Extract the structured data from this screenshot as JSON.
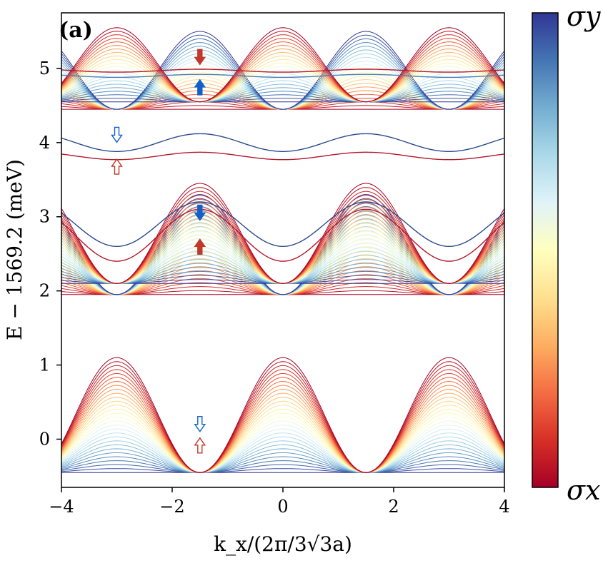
{
  "chart_data": {
    "type": "line",
    "panel_label": "(a)",
    "xlabel": "k_x/(2π/3√3a)",
    "ylabel": "E − 1569.2 (meV)",
    "xlim": [
      -4,
      4
    ],
    "ylim": [
      -0.65,
      5.75
    ],
    "x_ticks": [
      -4,
      -2,
      0,
      2,
      4
    ],
    "x_tick_labels": [
      "−4",
      "−2",
      "0",
      "2",
      "4"
    ],
    "y_ticks": [
      0,
      1,
      2,
      3,
      4,
      5
    ],
    "y_tick_labels": [
      "0",
      "1",
      "2",
      "3",
      "4",
      "5"
    ],
    "grid": false,
    "colorbar": {
      "top_label": "σy",
      "bottom_label": "σx",
      "colors": [
        "#313695",
        "#4575b4",
        "#74add1",
        "#abd9e9",
        "#e0f3f8",
        "#ffffbf",
        "#fee090",
        "#fdae61",
        "#f46d43",
        "#d73027",
        "#a50026"
      ]
    },
    "bands": {
      "period": 3,
      "groups": [
        {
          "name": "lower",
          "base": -0.45,
          "amp": 1.55,
          "count": 30,
          "shape": "cos",
          "offset": 0
        },
        {
          "name": "mid-lower",
          "base": 1.95,
          "amp": 1.35,
          "count": 26,
          "shape": "cos-inv",
          "offset": 0
        },
        {
          "name": "mid-upper",
          "base": 2.1,
          "amp": 1.35,
          "count": 26,
          "shape": "cos",
          "offset": 1.5
        },
        {
          "name": "upper-a",
          "base": 4.45,
          "amp": 1.05,
          "count": 22,
          "shape": "cos",
          "offset": 1.5
        },
        {
          "name": "upper-b",
          "base": 4.55,
          "amp": 1.0,
          "count": 22,
          "shape": "cos",
          "offset": 0
        }
      ]
    },
    "edge_states": [
      {
        "x": [
          -4,
          4
        ],
        "y": 4.0,
        "amp": 0.12,
        "color": "#2b4a8f"
      },
      {
        "x": [
          -4,
          4
        ],
        "y": 3.82,
        "amp": 0.05,
        "color": "#b2182b"
      },
      {
        "x": [
          -4,
          4
        ],
        "y": 2.75,
        "amp": 0.35,
        "color": "#b2182b"
      },
      {
        "x": [
          -4,
          4
        ],
        "y": 2.9,
        "amp": 0.3,
        "color": "#2b4a8f"
      },
      {
        "x": [
          -4,
          4
        ],
        "y": 4.97,
        "amp": 0.02,
        "color": "#b2182b"
      },
      {
        "x": [
          -4,
          4
        ],
        "y": 4.9,
        "amp": 0.02,
        "color": "#4a7fb0"
      }
    ],
    "arrows": [
      {
        "x": -1.5,
        "y": 5.15,
        "dir": "down",
        "filled": true,
        "color": "#c0392b"
      },
      {
        "x": -1.5,
        "y": 4.75,
        "dir": "up",
        "filled": true,
        "color": "#1060c8"
      },
      {
        "x": -3.0,
        "y": 4.1,
        "dir": "down",
        "filled": false,
        "color": "#1060c8"
      },
      {
        "x": -3.0,
        "y": 3.68,
        "dir": "up",
        "filled": false,
        "color": "#c0392b"
      },
      {
        "x": -1.5,
        "y": 3.05,
        "dir": "down",
        "filled": true,
        "color": "#1060c8"
      },
      {
        "x": -1.5,
        "y": 2.6,
        "dir": "up",
        "filled": true,
        "color": "#c0392b"
      },
      {
        "x": -1.5,
        "y": 0.2,
        "dir": "down",
        "filled": false,
        "color": "#1060c8"
      },
      {
        "x": -1.5,
        "y": -0.08,
        "dir": "up",
        "filled": false,
        "color": "#c0392b"
      }
    ]
  }
}
